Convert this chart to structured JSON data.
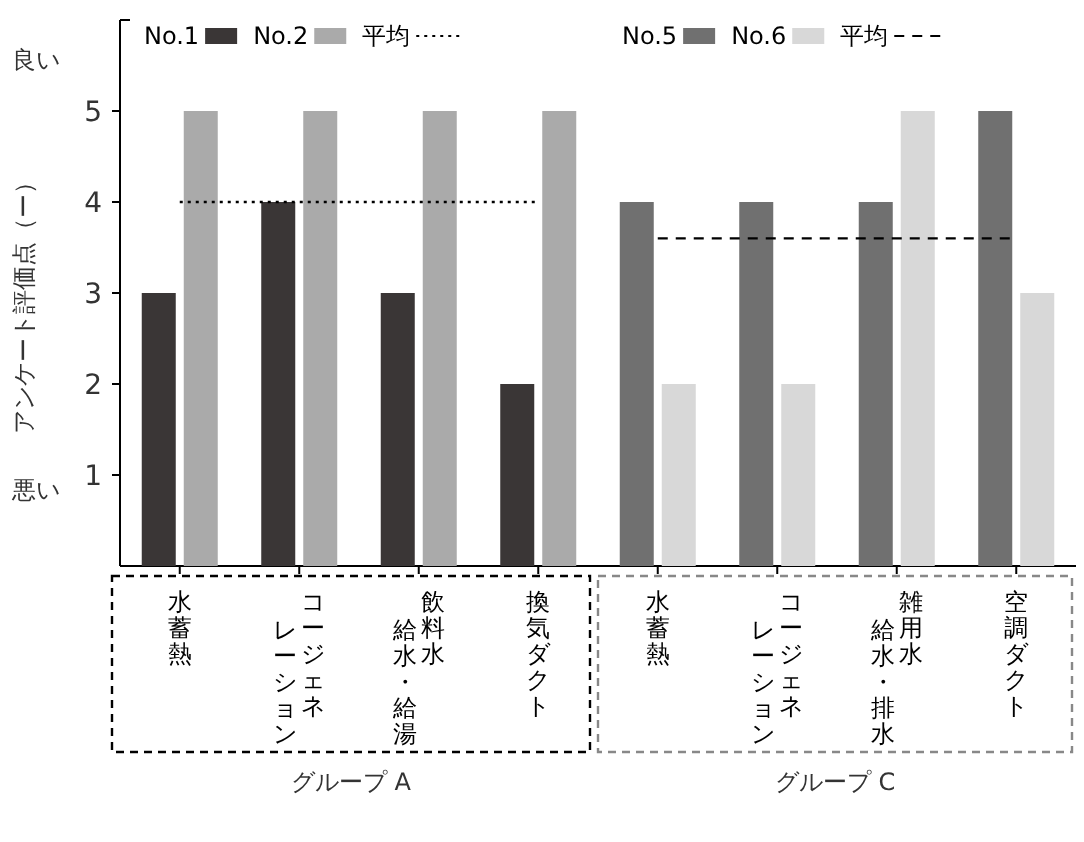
{
  "chart_data": {
    "type": "bar",
    "ylabel": "アンケート評価点（ー）",
    "categories": [
      "水蓄熱",
      "コージェネレーション",
      "飲料水給水・給湯",
      "換気ダクト",
      "水蓄熱",
      "コージェネレーション",
      "雑用水給水・排水",
      "空調ダクト"
    ],
    "series": [
      {
        "name": "No.1",
        "color": "#3a3636",
        "values": [
          3,
          4,
          3,
          2,
          null,
          null,
          null,
          null
        ]
      },
      {
        "name": "No.2",
        "color": "#aaaaaa",
        "values": [
          5,
          5,
          5,
          5,
          null,
          null,
          null,
          null
        ]
      },
      {
        "name": "平均",
        "type": "line",
        "line_style": "dotted",
        "color": "#000000",
        "values": [
          4,
          4,
          4,
          4,
          null,
          null,
          null,
          null
        ]
      },
      {
        "name": "No.5",
        "color": "#707070",
        "values": [
          null,
          null,
          null,
          null,
          4,
          4,
          4,
          5
        ]
      },
      {
        "name": "No.6",
        "color": "#d8d8d8",
        "values": [
          null,
          null,
          null,
          null,
          2,
          2,
          5,
          3
        ]
      },
      {
        "name": "平均",
        "type": "line",
        "line_style": "dashed",
        "color": "#000000",
        "values": [
          null,
          null,
          null,
          null,
          3.6,
          3.6,
          3.6,
          3.6
        ]
      }
    ],
    "ylim": [
      0,
      6
    ],
    "yticks": [
      1,
      2,
      3,
      4,
      5
    ],
    "grid": false,
    "legend": "top",
    "annotations": [
      "良い",
      "悪い",
      "グループ A",
      "グループ C"
    ]
  }
}
